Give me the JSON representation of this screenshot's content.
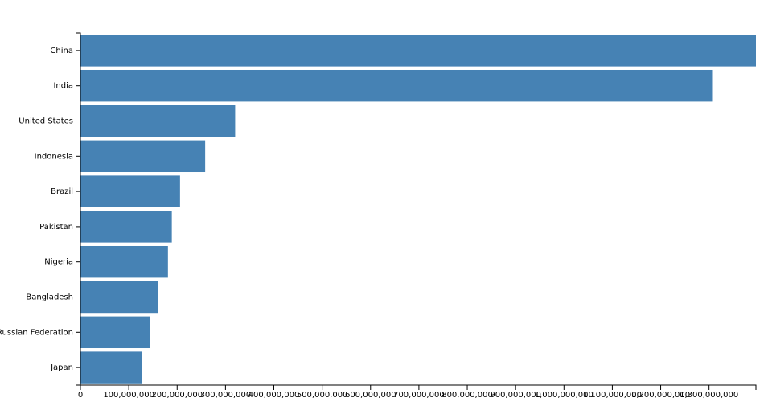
{
  "chart_data": {
    "type": "bar",
    "orientation": "horizontal",
    "categories": [
      "China",
      "India",
      "United States",
      "Indonesia",
      "Brazil",
      "Pakistan",
      "Nigeria",
      "Bangladesh",
      "Russian Federation",
      "Japan"
    ],
    "values": [
      1397000000,
      1308000000,
      320000000,
      258000000,
      206000000,
      189000000,
      181000000,
      161000000,
      144000000,
      128000000
    ],
    "xlim": [
      0,
      1397000000
    ],
    "x_ticks": [
      0,
      100000000,
      200000000,
      300000000,
      400000000,
      500000000,
      600000000,
      700000000,
      800000000,
      900000000,
      1000000000,
      1100000000,
      1200000000,
      1300000000
    ],
    "x_tick_labels": [
      "0",
      "100,000,000",
      "200,000,000",
      "300,000,000",
      "400,000,000",
      "500,000,000",
      "600,000,000",
      "700,000,000",
      "800,000,000",
      "900,000,000",
      "1,000,000,000",
      "1,100,000,000",
      "1,200,000,000",
      "1,300,000,000"
    ],
    "bar_color": "#4682b4",
    "title": "",
    "xlabel": "",
    "ylabel": "",
    "grid": false,
    "legend": "none"
  }
}
